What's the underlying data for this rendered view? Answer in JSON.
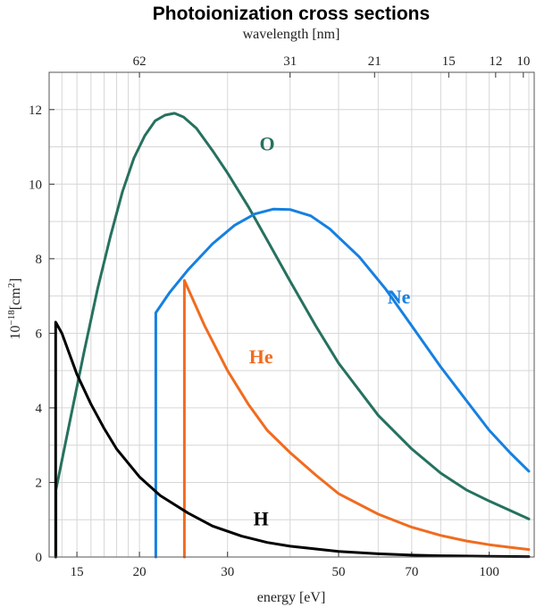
{
  "chart_data": {
    "type": "line",
    "title": "Photoionization cross sections",
    "top_axis_label": "wavelength [nm]",
    "xlabel": "energy [eV]",
    "ylabel_base": "10",
    "ylabel_exp": "−18",
    "ylabel_unit": "[cm",
    "ylabel_unit_exp": "2",
    "ylabel_close": "]",
    "x_scale": "log",
    "xlim": [
      13.2,
      123
    ],
    "ylim": [
      0,
      13
    ],
    "grid": true,
    "bottom_ticks": [
      {
        "value": 15,
        "label": "15"
      },
      {
        "value": 20,
        "label": "20"
      },
      {
        "value": 30,
        "label": "30"
      },
      {
        "value": 50,
        "label": "50"
      },
      {
        "value": 70,
        "label": "70"
      },
      {
        "value": 100,
        "label": "100"
      }
    ],
    "top_ticks": [
      {
        "value": 20,
        "label": "62"
      },
      {
        "value": 40,
        "label": "31"
      },
      {
        "value": 59,
        "label": "21"
      },
      {
        "value": 83,
        "label": "15"
      },
      {
        "value": 103,
        "label": "12"
      },
      {
        "value": 117,
        "label": "10"
      }
    ],
    "y_ticks": [
      0,
      2,
      4,
      6,
      8,
      10,
      12
    ],
    "series": [
      {
        "name": "O",
        "color": "#26715f",
        "label_at": [
          36,
          10.9
        ],
        "points": [
          [
            13.62,
            0
          ],
          [
            13.62,
            1.8
          ],
          [
            14.5,
            3.6
          ],
          [
            15.5,
            5.5
          ],
          [
            16.5,
            7.2
          ],
          [
            17.5,
            8.6
          ],
          [
            18.5,
            9.8
          ],
          [
            19.5,
            10.7
          ],
          [
            20.5,
            11.3
          ],
          [
            21.5,
            11.7
          ],
          [
            22.5,
            11.85
          ],
          [
            23.5,
            11.9
          ],
          [
            24.5,
            11.8
          ],
          [
            26,
            11.5
          ],
          [
            28,
            10.9
          ],
          [
            30,
            10.3
          ],
          [
            33,
            9.4
          ],
          [
            36,
            8.5
          ],
          [
            40,
            7.4
          ],
          [
            45,
            6.2
          ],
          [
            50,
            5.2
          ],
          [
            60,
            3.8
          ],
          [
            70,
            2.9
          ],
          [
            80,
            2.25
          ],
          [
            90,
            1.8
          ],
          [
            100,
            1.5
          ],
          [
            110,
            1.25
          ],
          [
            120,
            1.02
          ]
        ]
      },
      {
        "name": "Ne",
        "color": "#1680e0",
        "label_at": [
          66,
          6.8
        ],
        "points": [
          [
            21.56,
            0
          ],
          [
            21.56,
            6.55
          ],
          [
            23,
            7.1
          ],
          [
            25,
            7.7
          ],
          [
            28,
            8.4
          ],
          [
            31,
            8.9
          ],
          [
            34,
            9.2
          ],
          [
            37,
            9.33
          ],
          [
            40,
            9.32
          ],
          [
            44,
            9.15
          ],
          [
            48,
            8.8
          ],
          [
            55,
            8.05
          ],
          [
            62,
            7.2
          ],
          [
            70,
            6.2
          ],
          [
            80,
            5.1
          ],
          [
            90,
            4.2
          ],
          [
            100,
            3.4
          ],
          [
            110,
            2.8
          ],
          [
            120,
            2.3
          ]
        ]
      },
      {
        "name": "He",
        "color": "#f06c20",
        "label_at": [
          35,
          5.2
        ],
        "points": [
          [
            24.59,
            0
          ],
          [
            24.59,
            7.42
          ],
          [
            27,
            6.2
          ],
          [
            30,
            5.0
          ],
          [
            33,
            4.1
          ],
          [
            36,
            3.4
          ],
          [
            40,
            2.8
          ],
          [
            45,
            2.2
          ],
          [
            50,
            1.7
          ],
          [
            60,
            1.15
          ],
          [
            70,
            0.8
          ],
          [
            80,
            0.58
          ],
          [
            90,
            0.43
          ],
          [
            100,
            0.33
          ],
          [
            110,
            0.26
          ],
          [
            120,
            0.2
          ]
        ]
      },
      {
        "name": "H",
        "color": "#000000",
        "label_at": [
          35,
          0.85
        ],
        "points": [
          [
            13.6,
            0
          ],
          [
            13.6,
            6.3
          ],
          [
            14,
            6.0
          ],
          [
            15,
            4.9
          ],
          [
            16,
            4.1
          ],
          [
            17,
            3.45
          ],
          [
            18,
            2.9
          ],
          [
            20,
            2.15
          ],
          [
            22,
            1.65
          ],
          [
            25,
            1.18
          ],
          [
            28,
            0.83
          ],
          [
            32,
            0.56
          ],
          [
            36,
            0.39
          ],
          [
            40,
            0.29
          ],
          [
            50,
            0.15
          ],
          [
            60,
            0.085
          ],
          [
            70,
            0.05
          ],
          [
            80,
            0.033
          ],
          [
            100,
            0.016
          ],
          [
            120,
            0.009
          ]
        ]
      }
    ]
  }
}
